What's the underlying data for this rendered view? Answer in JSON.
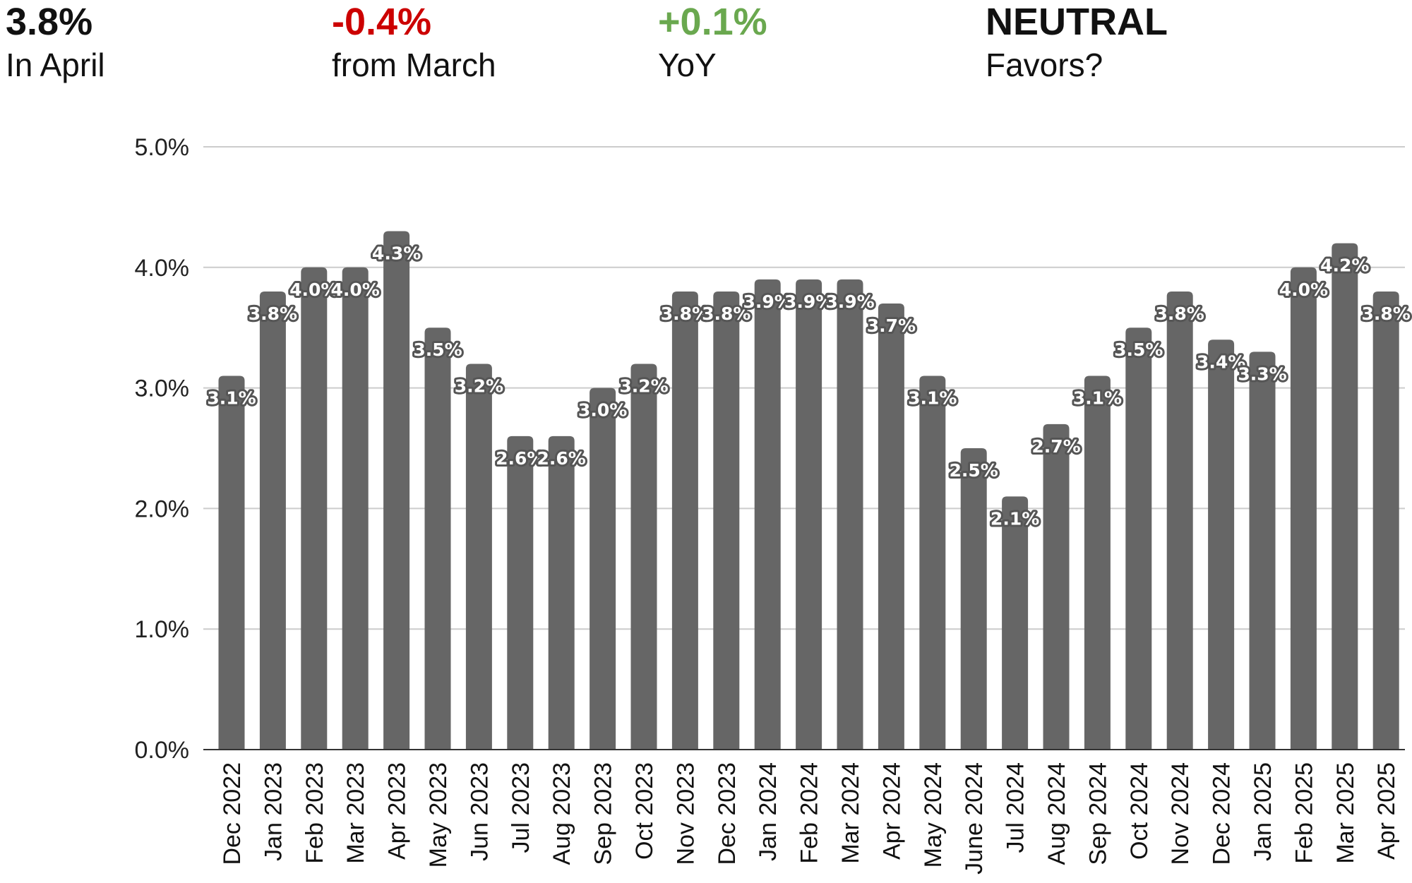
{
  "header": {
    "stats": [
      {
        "value": "3.8%",
        "label": "In April",
        "color": "#111111"
      },
      {
        "value": "-0.4%",
        "label": "from March",
        "color": "#cc0000"
      },
      {
        "value": "+0.1%",
        "label": "YoY",
        "color": "#6aa84f"
      },
      {
        "value": "NEUTRAL",
        "label": "Favors?",
        "color": "#111111"
      }
    ]
  },
  "chart_data": {
    "type": "bar",
    "title": "",
    "xlabel": "",
    "ylabel": "",
    "ylim": [
      0,
      5
    ],
    "yticks": [
      0,
      1,
      2,
      3,
      4,
      5
    ],
    "ytick_labels": [
      "0.0%",
      "1.0%",
      "2.0%",
      "3.0%",
      "4.0%",
      "5.0%"
    ],
    "grid": true,
    "legend": "none",
    "bar_color": "#666666",
    "categories": [
      "Dec 2022",
      "Jan 2023",
      "Feb 2023",
      "Mar 2023",
      "Apr 2023",
      "May 2023",
      "Jun 2023",
      "Jul 2023",
      "Aug 2023",
      "Sep 2023",
      "Oct 2023",
      "Nov 2023",
      "Dec 2023",
      "Jan 2024",
      "Feb 2024",
      "Mar 2024",
      "Apr 2024",
      "May 2024",
      "June 2024",
      "Jul 2024",
      "Aug 2024",
      "Sep 2024",
      "Oct 2024",
      "Nov 2024",
      "Dec 2024",
      "Jan 2025",
      "Feb 2025",
      "Mar 2025",
      "Apr 2025"
    ],
    "values": [
      3.1,
      3.8,
      4.0,
      4.0,
      4.3,
      3.5,
      3.2,
      2.6,
      2.6,
      3.0,
      3.2,
      3.8,
      3.8,
      3.9,
      3.9,
      3.9,
      3.7,
      3.1,
      2.5,
      2.1,
      2.7,
      3.1,
      3.5,
      3.8,
      3.4,
      3.3,
      4.0,
      4.2,
      3.8
    ],
    "data_labels": [
      "3.1%",
      "3.8%",
      "4.0%",
      "4.0%",
      "4.3%",
      "3.5%",
      "3.2%",
      "2.6%",
      "2.6%",
      "3.0%",
      "3.2%",
      "3.8%",
      "3.8%",
      "3.9%",
      "3.9%",
      "3.9%",
      "3.7%",
      "3.1%",
      "2.5%",
      "2.1%",
      "2.7%",
      "3.1%",
      "3.5%",
      "3.8%",
      "3.4%",
      "3.3%",
      "4.0%",
      "4.2%",
      "3.8%"
    ]
  }
}
